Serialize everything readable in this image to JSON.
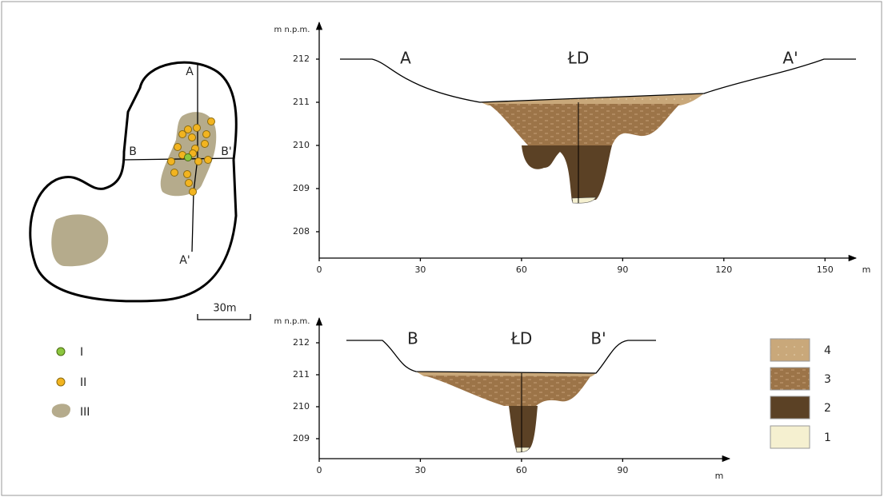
{
  "map": {
    "section_labels": [
      "A",
      "A'",
      "B",
      "B'"
    ],
    "scale_label": "30m"
  },
  "point_legend": [
    "I",
    "II",
    "III"
  ],
  "profiles": [
    {
      "y_axis_label": "m n.p.m.",
      "x_axis_label": "m",
      "xticks": [
        0,
        30,
        60,
        90,
        120,
        150
      ],
      "yticks": [
        208,
        209,
        210,
        211,
        212
      ],
      "labels": [
        "A",
        "ŁD",
        "A'"
      ]
    },
    {
      "y_axis_label": "m n.p.m.",
      "x_axis_label": "m",
      "xticks": [
        0,
        30,
        60,
        90
      ],
      "yticks": [
        209,
        210,
        211,
        212
      ],
      "labels": [
        "B",
        "ŁD",
        "B'"
      ]
    }
  ],
  "layer_legend": [
    "4",
    "3",
    "2",
    "1"
  ]
}
